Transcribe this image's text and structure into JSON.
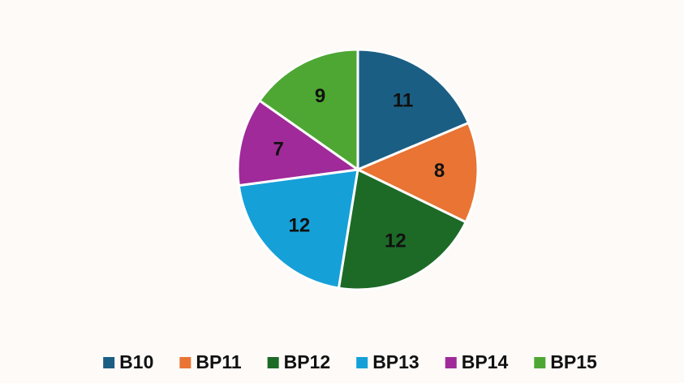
{
  "chart_data": {
    "type": "pie",
    "categories": [
      "B10",
      "BP11",
      "BP12",
      "BP13",
      "BP14",
      "BP15"
    ],
    "values": [
      11,
      8,
      12,
      12,
      7,
      9
    ],
    "colors": [
      "#1b5e84",
      "#e97433",
      "#1d6a27",
      "#16a0d8",
      "#a02a99",
      "#4ea733"
    ],
    "legend": "bottom"
  }
}
